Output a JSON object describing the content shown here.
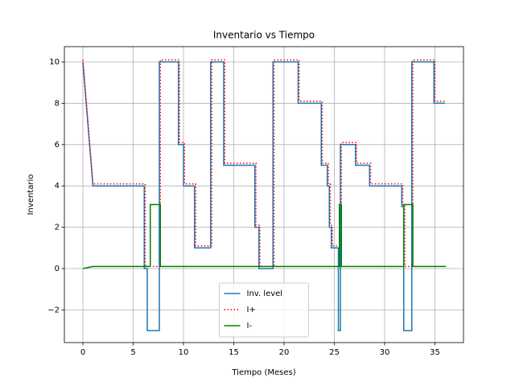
{
  "chart_data": {
    "type": "line",
    "title": "Inventario vs Tiempo",
    "x_label": "Tiempo (Meses)",
    "y_label": "Inventario",
    "xlim": [
      -1.84,
      37.84
    ],
    "ylim": [
      -3.58,
      10.74
    ],
    "xticks": [
      0,
      5,
      10,
      15,
      20,
      25,
      30,
      35
    ],
    "yticks": [
      {
        "value": -2,
        "label": "−2"
      },
      0,
      2,
      4,
      6,
      8,
      10
    ],
    "grid": true,
    "legend": "lower center",
    "series": [
      {
        "name": "Inv. level",
        "color": "#1f77b4",
        "style": "solid",
        "x": [
          0,
          1,
          6.1,
          6.1,
          6.4,
          6.4,
          7.6,
          7.6,
          9.5,
          9.5,
          10,
          10,
          11.1,
          11.1,
          12.7,
          12.7,
          14,
          14,
          17.1,
          17.1,
          17.5,
          17.5,
          18.9,
          18.9,
          21.4,
          21.4,
          23.7,
          23.7,
          24.3,
          24.3,
          24.5,
          24.5,
          24.7,
          24.7,
          25.4,
          25.4,
          25.6,
          25.6,
          27.1,
          27.1,
          28.5,
          28.5,
          31.7,
          31.7,
          31.9,
          31.9,
          32.7,
          32.7,
          34.9,
          34.9,
          36
        ],
        "values": [
          10,
          4,
          4,
          0,
          0,
          -3,
          -3,
          10,
          10,
          6,
          6,
          4,
          4,
          1,
          1,
          10,
          10,
          5,
          5,
          2,
          2,
          0,
          0,
          10,
          10,
          8,
          8,
          5,
          5,
          4,
          4,
          2,
          2,
          1,
          1,
          -3,
          -3,
          6,
          6,
          5,
          5,
          4,
          4,
          3,
          3,
          -3,
          -3,
          10,
          10,
          8,
          8
        ]
      },
      {
        "name": "I+",
        "color": "#ff0000",
        "style": "dotted",
        "x": [
          0,
          1,
          6.2,
          6.2,
          7.7,
          7.7,
          9.6,
          9.6,
          10.1,
          10.1,
          11.2,
          11.2,
          12.8,
          12.8,
          14.1,
          14.1,
          17.2,
          17.2,
          17.6,
          17.6,
          19,
          19,
          21.5,
          21.5,
          23.8,
          23.8,
          24.4,
          24.4,
          24.6,
          24.6,
          24.8,
          24.8,
          25.5,
          25.5,
          25.7,
          25.7,
          27.2,
          27.2,
          28.6,
          28.6,
          31.8,
          31.8,
          32,
          32,
          32.8,
          32.8,
          35,
          35,
          36.1
        ],
        "values": [
          10.1,
          4.1,
          4.1,
          0.1,
          0.1,
          10.1,
          10.1,
          6.1,
          6.1,
          4.1,
          4.1,
          1.1,
          1.1,
          10.1,
          10.1,
          5.1,
          5.1,
          2.1,
          2.1,
          0.1,
          0.1,
          10.1,
          10.1,
          8.1,
          8.1,
          5.1,
          5.1,
          4.1,
          4.1,
          2.1,
          2.1,
          1.1,
          1.1,
          0.1,
          0.1,
          6.1,
          6.1,
          5.1,
          5.1,
          4.1,
          4.1,
          3.1,
          3.1,
          0.1,
          0.1,
          10.1,
          10.1,
          8.1,
          8.1
        ]
      },
      {
        "name": "I-",
        "color": "#008000",
        "style": "solid",
        "x": [
          0,
          1,
          6.7,
          6.7,
          7.7,
          7.7,
          25.5,
          25.5,
          25.7,
          25.7,
          31.9,
          31.9,
          32.8,
          32.8,
          36.1
        ],
        "values": [
          0,
          0.1,
          0.1,
          3.1,
          3.1,
          0.1,
          0.1,
          3.1,
          3.1,
          0.1,
          0.1,
          3.1,
          3.1,
          0.1,
          0.1
        ]
      }
    ]
  }
}
